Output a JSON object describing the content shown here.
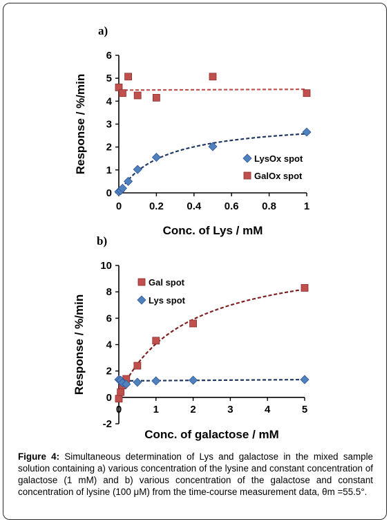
{
  "chart_data": [
    {
      "type": "scatter",
      "panel_label": "a)",
      "xlabel": "Conc. of Lys / mM",
      "ylabel": "Response / %/min",
      "xlim": [
        0,
        1
      ],
      "ylim": [
        0,
        6
      ],
      "xticks": [
        "0",
        "0.2",
        "0.4",
        "0.6",
        "0.8",
        "1"
      ],
      "yticks": [
        "0",
        "1",
        "2",
        "3",
        "4",
        "5",
        "6"
      ],
      "legend_position": "bottom-right",
      "series": [
        {
          "name": "LysOx spot",
          "marker": "diamond",
          "color": "#4f81bd",
          "x": [
            0,
            0.01,
            0.02,
            0.05,
            0.1,
            0.2,
            0.5,
            1
          ],
          "y": [
            0.05,
            0.1,
            0.2,
            0.5,
            1.02,
            1.55,
            2.02,
            2.65
          ],
          "fit": "saturating",
          "fit_color": "#1f3864"
        },
        {
          "name": "GalOx spot",
          "marker": "square",
          "color": "#c0504d",
          "x": [
            0,
            0.02,
            0.05,
            0.1,
            0.2,
            0.5,
            1
          ],
          "y": [
            4.6,
            4.35,
            5.07,
            4.25,
            4.15,
            5.07,
            4.35
          ],
          "fit": "flat",
          "fit_values": [
            4.48,
            4.52
          ],
          "fit_color": "#c0504d"
        }
      ]
    },
    {
      "type": "scatter",
      "panel_label": "b)",
      "xlabel": "Conc. of galactose / mM",
      "ylabel": "Response / %/min",
      "xlim": [
        0,
        5
      ],
      "ylim": [
        -2,
        10
      ],
      "xticks": [
        "0",
        "1",
        "2",
        "3",
        "4",
        "5"
      ],
      "yticks": [
        "-2",
        "0",
        "2",
        "4",
        "6",
        "8",
        "10"
      ],
      "legend_position": "top-left",
      "series": [
        {
          "name": "Gal spot",
          "marker": "square",
          "color": "#c0504d",
          "x": [
            0,
            0.05,
            0.1,
            0.2,
            0.5,
            1,
            2,
            5
          ],
          "y": [
            -0.1,
            0.4,
            0.9,
            1.4,
            2.4,
            4.3,
            5.6,
            8.3
          ],
          "fit": "saturating",
          "fit_color": "#7f1f1f"
        },
        {
          "name": "Lys spot",
          "marker": "diamond",
          "color": "#4f81bd",
          "x": [
            0,
            0.05,
            0.1,
            0.2,
            0.5,
            1,
            2,
            5
          ],
          "y": [
            1.35,
            1.3,
            1.1,
            1.0,
            1.15,
            1.25,
            1.3,
            1.35
          ],
          "fit": "flat",
          "fit_values": [
            1.25,
            1.35
          ],
          "fit_color": "#1f3864"
        }
      ]
    }
  ],
  "caption": {
    "label": "Figure 4:",
    "text": " Simultaneous determination of Lys and galactose in the mixed sample solution containing a) various concentration of the lysine and constant concentration of galactose (1 mM) and b) various concentration of the galactose and constant concentration of lysine (100 μM) from the time-course measurement data, θm =55.5°."
  }
}
